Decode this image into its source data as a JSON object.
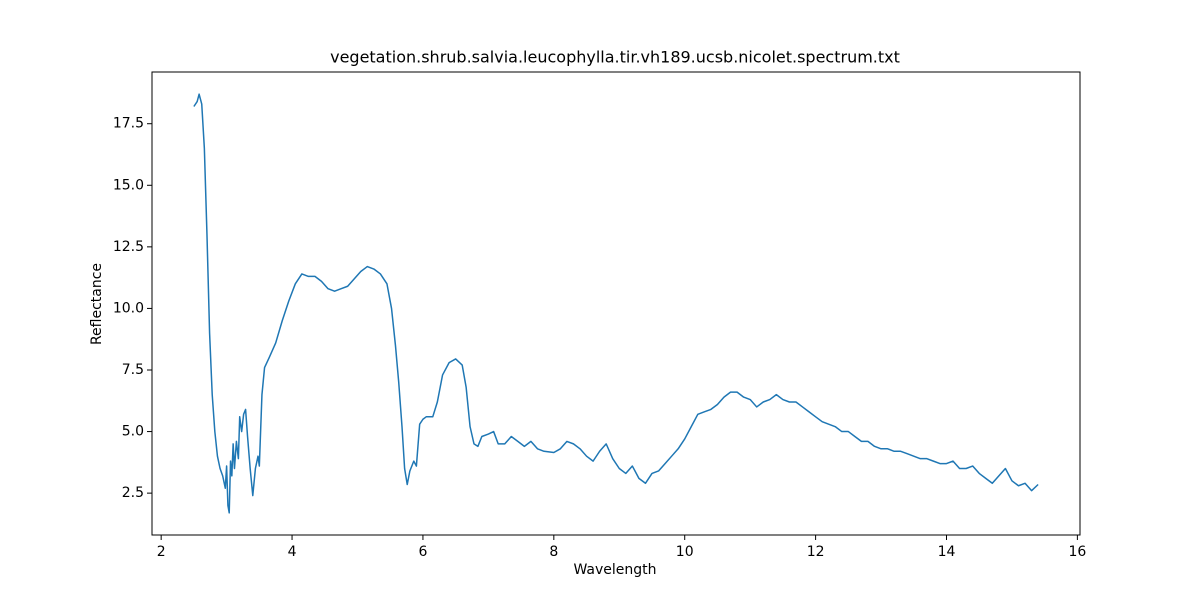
{
  "chart_data": {
    "type": "line",
    "title": "vegetation.shrub.salvia.leucophylla.tir.vh189.ucsb.nicolet.spectrum.txt",
    "xlabel": "Wavelength",
    "ylabel": "Reflectance",
    "color": "#1f77b4",
    "x": [
      2.5,
      2.55,
      2.58,
      2.62,
      2.66,
      2.7,
      2.74,
      2.78,
      2.82,
      2.86,
      2.9,
      2.94,
      2.98,
      3.0,
      3.02,
      3.04,
      3.06,
      3.08,
      3.1,
      3.12,
      3.15,
      3.18,
      3.2,
      3.23,
      3.26,
      3.29,
      3.32,
      3.36,
      3.4,
      3.44,
      3.48,
      3.5,
      3.54,
      3.58,
      3.65,
      3.75,
      3.85,
      3.95,
      4.05,
      4.15,
      4.25,
      4.35,
      4.45,
      4.55,
      4.65,
      4.75,
      4.85,
      4.95,
      5.05,
      5.15,
      5.25,
      5.35,
      5.45,
      5.52,
      5.58,
      5.63,
      5.68,
      5.72,
      5.76,
      5.8,
      5.86,
      5.9,
      5.95,
      6.0,
      6.05,
      6.15,
      6.22,
      6.3,
      6.4,
      6.5,
      6.6,
      6.66,
      6.72,
      6.78,
      6.84,
      6.9,
      7.0,
      7.08,
      7.15,
      7.25,
      7.35,
      7.45,
      7.55,
      7.65,
      7.75,
      7.85,
      8.0,
      8.1,
      8.2,
      8.3,
      8.4,
      8.5,
      8.6,
      8.7,
      8.8,
      8.9,
      9.0,
      9.1,
      9.2,
      9.3,
      9.4,
      9.5,
      9.6,
      9.7,
      9.8,
      9.9,
      10.0,
      10.1,
      10.2,
      10.3,
      10.4,
      10.5,
      10.6,
      10.7,
      10.8,
      10.9,
      11.0,
      11.1,
      11.2,
      11.3,
      11.4,
      11.5,
      11.6,
      11.7,
      11.8,
      11.9,
      12.0,
      12.1,
      12.2,
      12.3,
      12.4,
      12.5,
      12.6,
      12.7,
      12.8,
      12.9,
      13.0,
      13.1,
      13.2,
      13.3,
      13.4,
      13.5,
      13.6,
      13.7,
      13.8,
      13.9,
      14.0,
      14.1,
      14.2,
      14.3,
      14.4,
      14.5,
      14.6,
      14.7,
      14.8,
      14.9,
      15.0,
      15.1,
      15.2,
      15.3,
      15.4
    ],
    "values": [
      18.2,
      18.4,
      18.7,
      18.3,
      16.5,
      13,
      9,
      6.5,
      5,
      4,
      3.5,
      3.2,
      2.7,
      3.6,
      2.0,
      1.7,
      3.8,
      3.2,
      4.5,
      3.5,
      4.6,
      3.9,
      5.6,
      5.0,
      5.7,
      5.9,
      4.8,
      3.5,
      2.4,
      3.5,
      4.0,
      3.6,
      6.5,
      7.6,
      8.0,
      8.6,
      9.5,
      10.3,
      11.0,
      11.4,
      11.3,
      11.3,
      11.1,
      10.8,
      10.7,
      10.8,
      10.9,
      11.2,
      11.5,
      11.7,
      11.6,
      11.4,
      11.0,
      10.0,
      8.5,
      7.0,
      5.2,
      3.5,
      2.85,
      3.4,
      3.8,
      3.6,
      5.3,
      5.5,
      5.6,
      5.6,
      6.2,
      7.3,
      7.8,
      7.95,
      7.7,
      6.8,
      5.2,
      4.5,
      4.4,
      4.8,
      4.9,
      5.0,
      4.5,
      4.5,
      4.8,
      4.6,
      4.4,
      4.6,
      4.3,
      4.2,
      4.15,
      4.3,
      4.6,
      4.5,
      4.3,
      4.0,
      3.8,
      4.2,
      4.5,
      3.9,
      3.5,
      3.3,
      3.6,
      3.1,
      2.9,
      3.3,
      3.4,
      3.7,
      4.0,
      4.3,
      4.7,
      5.2,
      5.7,
      5.8,
      5.9,
      6.1,
      6.4,
      6.6,
      6.6,
      6.4,
      6.3,
      6.0,
      6.2,
      6.3,
      6.5,
      6.3,
      6.2,
      6.2,
      6.0,
      5.8,
      5.6,
      5.4,
      5.3,
      5.2,
      5.0,
      5.0,
      4.8,
      4.6,
      4.6,
      4.4,
      4.3,
      4.3,
      4.2,
      4.2,
      4.1,
      4.0,
      3.9,
      3.9,
      3.8,
      3.7,
      3.7,
      3.8,
      3.5,
      3.5,
      3.6,
      3.3,
      3.1,
      2.9,
      3.2,
      3.5,
      3.0,
      2.8,
      2.9,
      2.6,
      2.85
    ],
    "xlim": [
      1.86,
      16.04
    ],
    "ylim": [
      0.8,
      19.6
    ],
    "xticks": [
      2,
      4,
      6,
      8,
      10,
      12,
      14,
      16
    ],
    "yticks": [
      2.5,
      {
        "value": 5,
        "label": "5.0"
      },
      7.5,
      {
        "value": 10,
        "label": "10.0"
      },
      12.5,
      {
        "value": 15,
        "label": "15.0"
      },
      17.5
    ]
  }
}
